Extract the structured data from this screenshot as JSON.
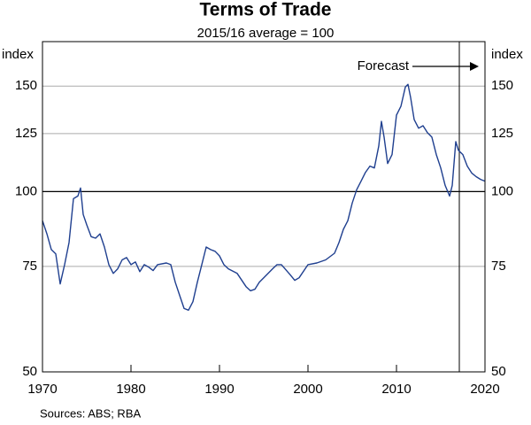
{
  "chart_data": {
    "type": "line",
    "title": "Terms of Trade",
    "subtitle": "2015/16 average = 100",
    "y_label": "index",
    "y2_label": "index",
    "source": "Sources: ABS; RBA",
    "annotation": "Forecast",
    "forecast_start": 2017.1,
    "baseline": 100,
    "log_y": true,
    "grid": true,
    "xlim": [
      1970,
      2020
    ],
    "xticks": [
      1970,
      1980,
      1990,
      2000,
      2010,
      2020
    ],
    "ylim": [
      50,
      178
    ],
    "yticks": [
      50,
      75,
      100,
      125,
      150
    ],
    "y2lim": [
      50,
      178
    ],
    "y2ticks": [
      50,
      75,
      100,
      125,
      150
    ],
    "series": [
      {
        "name": "Terms of Trade",
        "color": "#1f3f8f",
        "x": [
          1970,
          1970.5,
          1971,
          1971.5,
          1972,
          1972.5,
          1973,
          1973.5,
          1974,
          1974.3,
          1974.6,
          1975,
          1975.5,
          1976,
          1976.5,
          1977,
          1977.5,
          1978,
          1978.5,
          1979,
          1979.5,
          1980,
          1980.5,
          1981,
          1981.5,
          1982,
          1982.5,
          1983,
          1984,
          1984.5,
          1985,
          1985.5,
          1986,
          1986.5,
          1987,
          1987.5,
          1988,
          1988.5,
          1989,
          1989.5,
          1990,
          1990.5,
          1991,
          1992,
          1993,
          1993.5,
          1994,
          1994.5,
          1995,
          1996,
          1996.5,
          1997,
          1998,
          1998.5,
          1999,
          2000,
          2001,
          2002,
          2003,
          2003.5,
          2004,
          2004.5,
          2005,
          2005.5,
          2006,
          2006.5,
          2007,
          2007.5,
          2008,
          2008.3,
          2008.6,
          2009,
          2009.5,
          2010,
          2010.5,
          2011,
          2011.3,
          2011.6,
          2012,
          2012.5,
          2013,
          2013.5,
          2014,
          2014.5,
          2015,
          2015.5,
          2016,
          2016.3,
          2016.7,
          2017,
          2017.5,
          2018,
          2018.5,
          2019,
          2019.5,
          2020
        ],
        "values": [
          89.4,
          85,
          80,
          78.7,
          70.1,
          75.5,
          82.2,
          97.3,
          98.3,
          101.4,
          91.6,
          88,
          84.1,
          83.6,
          85,
          80.8,
          75.5,
          73,
          74.3,
          76.9,
          77.6,
          75.5,
          76.3,
          73.5,
          75.5,
          74.8,
          73.8,
          75.5,
          76,
          75.5,
          70.6,
          67.1,
          63.8,
          63.4,
          65.5,
          70.6,
          75.5,
          80.8,
          80,
          79.5,
          78.1,
          75.5,
          74.3,
          73,
          69.4,
          68.3,
          68.7,
          70.6,
          71.8,
          74.3,
          75.5,
          75.5,
          72.6,
          71.1,
          71.8,
          75.5,
          76,
          76.9,
          78.9,
          82.2,
          86.5,
          89.4,
          95.7,
          100.7,
          104.1,
          107.7,
          110.3,
          109.5,
          119.2,
          131,
          123.3,
          111.4,
          115.3,
          134.2,
          138.8,
          149.5,
          151,
          143.5,
          131.9,
          127.6,
          128.8,
          125.4,
          123.3,
          115.3,
          109.5,
          102.4,
          98.3,
          102.4,
          121.2,
          117.2,
          115.3,
          110.3,
          107.4,
          105.9,
          104.8,
          104.1
        ]
      }
    ]
  }
}
